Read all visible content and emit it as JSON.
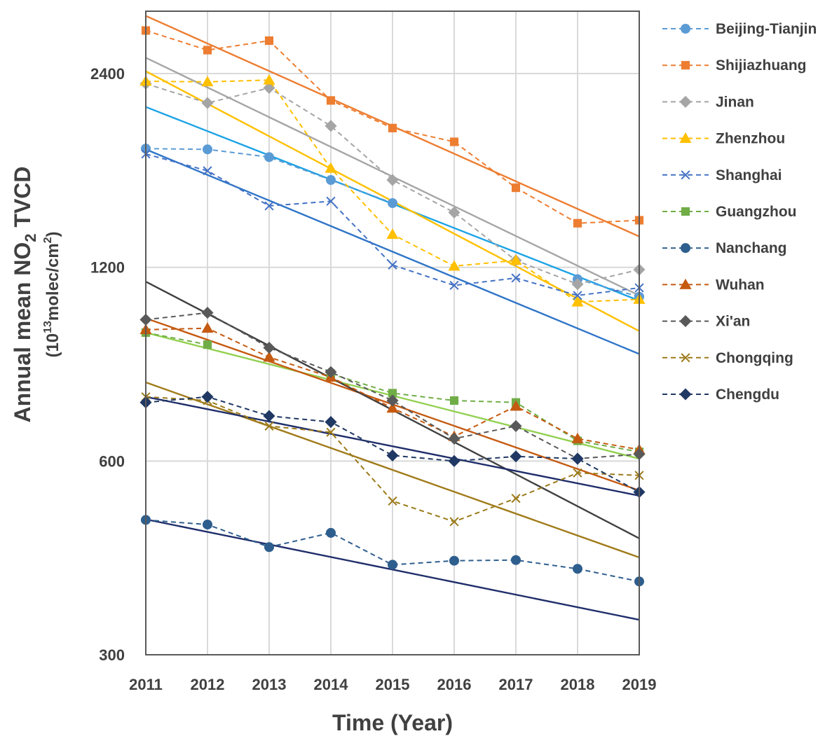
{
  "chart_data": {
    "type": "line",
    "xlabel": "Time (Year)",
    "ylabel": {
      "main_prefix": "Annual mean NO",
      "main_sub": "2",
      "main_suffix": " TVCD",
      "unit_prefix": "(10",
      "unit_exp": "13",
      "unit_mid": "molec/cm",
      "unit_exp2": "2",
      "unit_suffix": ")"
    },
    "y_scale": "log",
    "ylim": [
      300,
      3000
    ],
    "y_ticks": [
      300,
      600,
      1200,
      2400
    ],
    "y_tick_labels": [
      "300",
      "600",
      "1200",
      "2400"
    ],
    "x": [
      2011,
      2012,
      2013,
      2014,
      2015,
      2016,
      2017,
      2018,
      2019
    ],
    "x_tick_labels": [
      "2011",
      "2012",
      "2013",
      "2014",
      "2015",
      "2016",
      "2017",
      "2018",
      "2019"
    ],
    "grid": true,
    "legend_position": "right",
    "series": [
      {
        "name": "Beijing-Tianjin",
        "color": "#5B9BD5",
        "marker": "circle",
        "values": [
          1835,
          1830,
          1780,
          1640,
          1510,
          null,
          null,
          1150,
          1080
        ],
        "trend": {
          "color": "#1CA3E6",
          "start": 2130,
          "end": 1065
        }
      },
      {
        "name": "Shijiazhuang",
        "color": "#ED7D31",
        "marker": "square",
        "values": [
          2800,
          2610,
          2700,
          2180,
          1975,
          1880,
          1595,
          1405,
          1420
        ],
        "trend": {
          "color": "#ED7D31",
          "start": 2950,
          "end": 1340
        }
      },
      {
        "name": "Jinan",
        "color": "#A5A5A5",
        "marker": "diamond",
        "values": [
          2315,
          2160,
          2280,
          1990,
          1640,
          1460,
          1230,
          1130,
          1190
        ],
        "trend": {
          "color": "#A5A5A5",
          "start": 2540,
          "end": 1085
        }
      },
      {
        "name": "Zhenzhou",
        "color": "#FFC000",
        "marker": "triangle",
        "values": [
          2335,
          2330,
          2345,
          1710,
          1350,
          1205,
          1230,
          1060,
          1070
        ],
        "trend": {
          "color": "#FFC000",
          "start": 2420,
          "end": 955
        }
      },
      {
        "name": "Shanghai",
        "color": "#4472C4",
        "marker": "x",
        "values": [
          1800,
          1695,
          1495,
          1520,
          1210,
          1125,
          1155,
          1085,
          1115
        ],
        "trend": {
          "color": "#2F75C8",
          "start": 1830,
          "end": 880
        }
      },
      {
        "name": "Guangzhou",
        "color": "#70AD47",
        "marker": "square",
        "values": [
          950,
          910,
          null,
          820,
          765,
          745,
          740,
          645,
          620
        ],
        "trend": {
          "color": "#92D050",
          "start": 950,
          "end": 605
        }
      },
      {
        "name": "Nanchang",
        "color": "#2E5E8E",
        "marker": "circle",
        "values": [
          486,
          478,
          441,
          464,
          414,
          420,
          421,
          408,
          390
        ],
        "trend": {
          "color": "#1F2E6B",
          "start": 487,
          "end": 340
        }
      },
      {
        "name": "Wuhan",
        "color": "#C55A11",
        "marker": "triangle",
        "values": [
          960,
          965,
          870,
          810,
          725,
          655,
          730,
          650,
          625
        ],
        "trend": {
          "color": "#C55A11",
          "start": 1000,
          "end": 540
        }
      },
      {
        "name": "Xi'an",
        "color": "#595959",
        "marker": "diamond",
        "values": [
          995,
          1020,
          900,
          825,
          745,
          650,
          680,
          605,
          615
        ],
        "trend": {
          "color": "#404040",
          "start": 1140,
          "end": 455
        }
      },
      {
        "name": "Chongqing",
        "color": "#9C7A1A",
        "marker": "x",
        "values": [
          755,
          745,
          680,
          665,
          520,
          483,
          525,
          575,
          570
        ],
        "trend": {
          "color": "#A07B1A",
          "start": 795,
          "end": 425
        }
      },
      {
        "name": "Chengdu",
        "color": "#203864",
        "marker": "diamond",
        "values": [
          740,
          755,
          705,
          690,
          612,
          600,
          610,
          605,
          537
        ],
        "trend": {
          "color": "#1F2E6B",
          "start": 755,
          "end": 530
        }
      }
    ]
  }
}
